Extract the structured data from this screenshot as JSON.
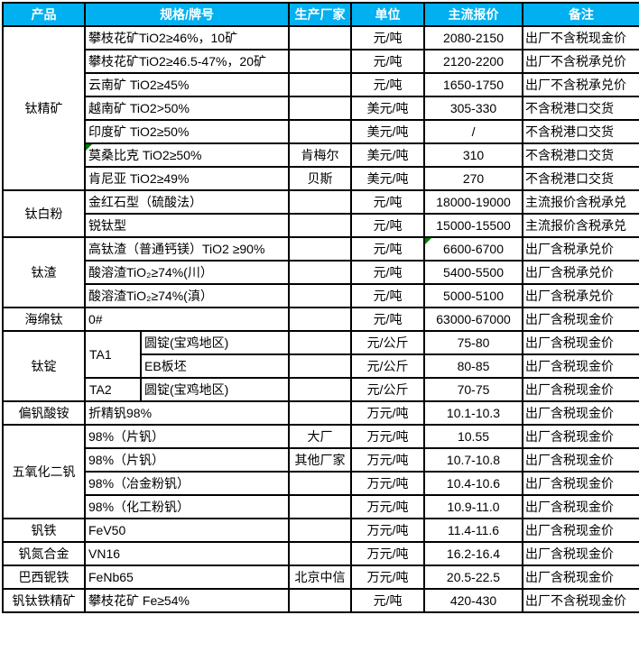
{
  "colors": {
    "header_bg": "#00B0F0",
    "header_text": "#FFFFFF",
    "border": "#000000",
    "marker": "#008000",
    "cell_text": "#000000"
  },
  "table": {
    "headers": [
      "产品",
      "规格/牌号",
      "生产厂家",
      "单位",
      "主流报价",
      "备注"
    ],
    "groups": [
      {
        "product": "钛精矿",
        "rows": [
          {
            "spec": "攀枝花矿TiO2≥46%，10矿",
            "maker": "",
            "unit": "元/吨",
            "price": "2080-2150",
            "remark": "出厂不含税现金价"
          },
          {
            "spec": "攀枝花矿TiO2≥46.5-47%，20矿",
            "maker": "",
            "unit": "元/吨",
            "price": "2120-2200",
            "remark": "出厂不含税承兑价"
          },
          {
            "spec": "云南矿 TiO2≥45%",
            "maker": "",
            "unit": "元/吨",
            "price": "1650-1750",
            "remark": "出厂不含税承兑价"
          },
          {
            "spec": "越南矿 TiO2>50%",
            "maker": "",
            "unit": "美元/吨",
            "price": "305-330",
            "remark": "不含税港口交货"
          },
          {
            "spec": "印度矿 TiO2≥50%",
            "maker": "",
            "unit": "美元/吨",
            "price": "/",
            "remark": "不含税港口交货"
          },
          {
            "spec": "莫桑比克 TiO2≥50%",
            "maker": "肯梅尔",
            "unit": "美元/吨",
            "price": "310",
            "remark": "不含税港口交货",
            "spec_marker": true
          },
          {
            "spec": "肯尼亚 TiO2≥49%",
            "maker": "贝斯",
            "unit": "美元/吨",
            "price": "270",
            "remark": "不含税港口交货"
          }
        ]
      },
      {
        "product": "钛白粉",
        "rows": [
          {
            "spec": "金红石型（硫酸法）",
            "maker": "",
            "unit": "元/吨",
            "price": "18000-19000",
            "remark": "主流报价含税承兑"
          },
          {
            "spec": "锐钛型",
            "maker": "",
            "unit": "元/吨",
            "price": "15000-15500",
            "remark": "主流报价含税承兑"
          }
        ]
      },
      {
        "product": "钛渣",
        "rows": [
          {
            "spec": "高钛渣（普通钙镁）TiO2 ≥90%",
            "maker": "",
            "unit": "元/吨",
            "price": "6600-6700",
            "remark": "出厂含税承兑价",
            "price_marker": true
          },
          {
            "spec": "酸溶渣TiO₂≥74%(川）",
            "maker": "",
            "unit": "元/吨",
            "price": "5400-5500",
            "remark": "出厂含税承兑价"
          },
          {
            "spec": "酸溶渣TiO₂≥74%(滇）",
            "maker": "",
            "unit": "元/吨",
            "price": "5000-5100",
            "remark": "出厂含税承兑价"
          }
        ]
      },
      {
        "product": "海绵钛",
        "rows": [
          {
            "spec": "0#",
            "maker": "",
            "unit": "元/吨",
            "price": "63000-67000",
            "remark": "出厂含税现金价"
          }
        ]
      },
      {
        "product": "钛锭",
        "split": true,
        "rows": [
          {
            "ta": "TA1",
            "ta_span": 2,
            "spec": "圆锭(宝鸡地区)",
            "maker": "",
            "unit": "元/公斤",
            "price": "75-80",
            "remark": "出厂含税现金价"
          },
          {
            "spec": "EB板坯",
            "maker": "",
            "unit": "元/公斤",
            "price": "80-85",
            "remark": "出厂含税现金价"
          },
          {
            "ta": "TA2",
            "ta_span": 1,
            "spec": "圆锭(宝鸡地区)",
            "maker": "",
            "unit": "元/公斤",
            "price": "70-75",
            "remark": "出厂含税现金价"
          }
        ]
      },
      {
        "product": "偏钒酸铵",
        "rows": [
          {
            "spec": "折精钒98%",
            "maker": "",
            "unit": "万元/吨",
            "price": "10.1-10.3",
            "remark": "出厂含税现金价"
          }
        ]
      },
      {
        "product": "五氧化二钒",
        "rows": [
          {
            "spec": "98%（片钒）",
            "maker": "大厂",
            "unit": "万元/吨",
            "price": "10.55",
            "remark": "出厂含税现金价"
          },
          {
            "spec": "98%（片钒）",
            "maker": "其他厂家",
            "unit": "万元/吨",
            "price": "10.7-10.8",
            "remark": "出厂含税现金价"
          },
          {
            "spec": "98%（冶金粉钒）",
            "maker": "",
            "unit": "万元/吨",
            "price": "10.4-10.6",
            "remark": "出厂含税现金价"
          },
          {
            "spec": "98%（化工粉钒）",
            "maker": "",
            "unit": "万元/吨",
            "price": "10.9-11.0",
            "remark": "出厂含税现金价"
          }
        ]
      },
      {
        "product": "钒铁",
        "rows": [
          {
            "spec": "FeV50",
            "maker": "",
            "unit": "万元/吨",
            "price": "11.4-11.6",
            "remark": "出厂含税现金价"
          }
        ]
      },
      {
        "product": "钒氮合金",
        "rows": [
          {
            "spec": "VN16",
            "maker": "",
            "unit": "万元/吨",
            "price": "16.2-16.4",
            "remark": "出厂含税现金价"
          }
        ]
      },
      {
        "product": "巴西铌铁",
        "rows": [
          {
            "spec": "FeNb65",
            "maker": "北京中信",
            "unit": "万元/吨",
            "price": "20.5-22.5",
            "remark": "出厂含税现金价"
          }
        ]
      },
      {
        "product": "钒钛铁精矿",
        "rows": [
          {
            "spec": "攀枝花矿 Fe≥54%",
            "maker": "",
            "unit": "元/吨",
            "price": "420-430",
            "remark": "出厂不含税现金价"
          }
        ]
      }
    ]
  }
}
